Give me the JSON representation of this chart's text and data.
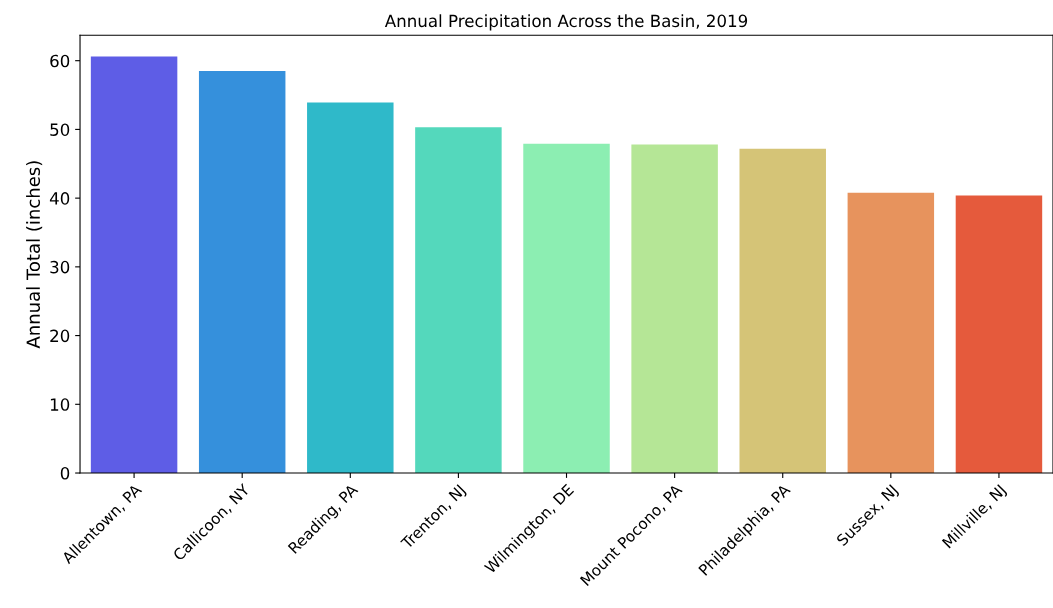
{
  "chart_data": {
    "type": "bar",
    "title": "Annual Precipitation Across the Basin, 2019",
    "ylabel": "Annual Total (inches)",
    "categories": [
      "Allentown, PA",
      "Callicoon, NY",
      "Reading, PA",
      "Trenton, NJ",
      "Wilmington, DE",
      "Mount Pocono, PA",
      "Philadelphia, PA",
      "Sussex, NJ",
      "Millville, NJ"
    ],
    "values": [
      60.6,
      58.5,
      53.9,
      50.3,
      47.9,
      47.8,
      47.2,
      40.8,
      40.4
    ],
    "colors": [
      "#5e5de6",
      "#3590dc",
      "#2fb9c9",
      "#54d8bc",
      "#8ceeb2",
      "#b5e696",
      "#d5c477",
      "#e7935d",
      "#e55a3c"
    ],
    "ylim": [
      0,
      63.7
    ],
    "yticks": [
      0,
      10,
      20,
      30,
      40,
      50,
      60
    ],
    "grid": false,
    "legend": false
  }
}
